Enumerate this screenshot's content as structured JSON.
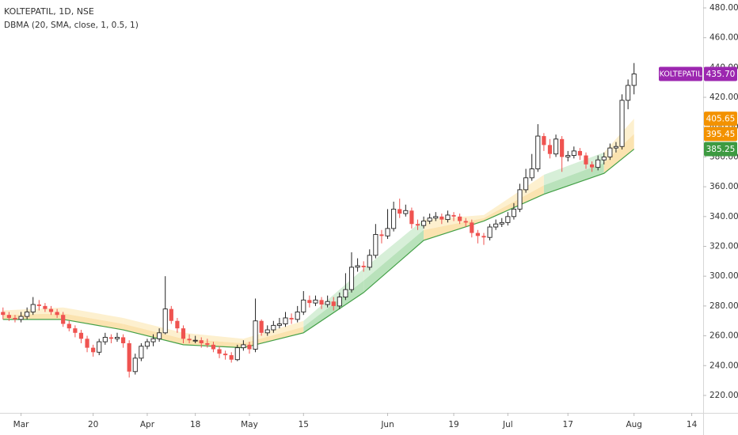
{
  "chart_data": {
    "type": "candlestick",
    "title": "KOLTEPATIL, 1D, NSE",
    "subtitle": "DBMA (20, SMA, close, 1, 0.5, 1)",
    "open": [
      276,
      274,
      272,
      271,
      273,
      276,
      281,
      280,
      278,
      276,
      274,
      268,
      265,
      262,
      258,
      252,
      249,
      256,
      259,
      258,
      259,
      255,
      236,
      245,
      253,
      256,
      258,
      262,
      278,
      270,
      265,
      258,
      257,
      257,
      255,
      254,
      251,
      248,
      247,
      244,
      252,
      254,
      251,
      270,
      262,
      264,
      267,
      268,
      272,
      271,
      276,
      284,
      282,
      284,
      281,
      283,
      280,
      286,
      291,
      306,
      307,
      306,
      314,
      328,
      327,
      332,
      345,
      342,
      344,
      335,
      334,
      337,
      339,
      340,
      338,
      341,
      340,
      337,
      336,
      329,
      327,
      326,
      333,
      335,
      336,
      340,
      345,
      358,
      366,
      372,
      394,
      388,
      382,
      392,
      380,
      381,
      384,
      381,
      375,
      373,
      378,
      380,
      386,
      387,
      418,
      428
    ],
    "high": [
      279,
      276,
      274,
      276,
      279,
      286,
      284,
      282,
      280,
      278,
      276,
      270,
      267,
      264,
      260,
      254,
      258,
      262,
      261,
      262,
      261,
      257,
      248,
      255,
      258,
      261,
      265,
      300,
      280,
      272,
      267,
      261,
      260,
      259,
      258,
      256,
      253,
      250,
      249,
      254,
      257,
      256,
      285,
      271,
      267,
      270,
      272,
      276,
      275,
      280,
      290,
      287,
      287,
      286,
      287,
      286,
      289,
      302,
      316,
      312,
      310,
      318,
      335,
      331,
      345,
      350,
      352,
      348,
      346,
      338,
      340,
      342,
      343,
      342,
      344,
      343,
      342,
      339,
      338,
      331,
      329,
      335,
      338,
      339,
      343,
      349,
      362,
      372,
      382,
      402,
      396,
      392,
      395,
      394,
      384,
      387,
      386,
      383,
      377,
      381,
      383,
      389,
      390,
      422,
      432,
      443
    ],
    "low": [
      271,
      270,
      269,
      269,
      271,
      274,
      277,
      276,
      274,
      272,
      266,
      263,
      259,
      255,
      249,
      246,
      247,
      254,
      255,
      256,
      252,
      232,
      234,
      243,
      251,
      253,
      256,
      261,
      268,
      262,
      255,
      255,
      255,
      252,
      252,
      249,
      245,
      244,
      242,
      243,
      250,
      248,
      249,
      260,
      260,
      262,
      265,
      266,
      268,
      269,
      274,
      279,
      280,
      278,
      279,
      277,
      278,
      284,
      289,
      303,
      303,
      304,
      312,
      322,
      325,
      330,
      339,
      340,
      332,
      331,
      332,
      335,
      337,
      335,
      336,
      337,
      335,
      333,
      326,
      322,
      321,
      324,
      331,
      333,
      334,
      338,
      343,
      356,
      364,
      370,
      384,
      379,
      380,
      370,
      377,
      379,
      378,
      372,
      370,
      371,
      375,
      378,
      383,
      385,
      412,
      422
    ],
    "close": [
      274,
      272,
      271,
      273,
      276,
      281,
      280,
      278,
      276,
      274,
      268,
      265,
      262,
      258,
      252,
      249,
      256,
      259,
      258,
      259,
      255,
      236,
      245,
      253,
      256,
      258,
      262,
      278,
      270,
      265,
      258,
      257,
      257,
      255,
      254,
      251,
      248,
      247,
      244,
      252,
      254,
      251,
      270,
      262,
      264,
      267,
      268,
      272,
      271,
      276,
      284,
      282,
      284,
      281,
      283,
      280,
      286,
      291,
      306,
      307,
      306,
      314,
      328,
      327,
      332,
      345,
      342,
      344,
      335,
      334,
      337,
      339,
      340,
      338,
      341,
      340,
      337,
      336,
      329,
      327,
      326,
      333,
      335,
      336,
      340,
      345,
      358,
      366,
      372,
      394,
      388,
      382,
      392,
      380,
      381,
      384,
      381,
      375,
      373,
      378,
      380,
      386,
      387,
      418,
      428,
      435.7
    ],
    "xlim": [
      -0.5,
      116.5
    ],
    "xticks": [
      {
        "value": 3,
        "label": "Mar"
      },
      {
        "value": 15,
        "label": "20"
      },
      {
        "value": 24,
        "label": "Apr"
      },
      {
        "value": 32,
        "label": "18"
      },
      {
        "value": 41,
        "label": "May"
      },
      {
        "value": 50,
        "label": "15"
      },
      {
        "value": 64,
        "label": "Jun"
      },
      {
        "value": 75,
        "label": "19"
      },
      {
        "value": 84,
        "label": "Jul"
      },
      {
        "value": 94,
        "label": "17"
      },
      {
        "value": 105,
        "label": "Aug"
      },
      {
        "value": 114.6,
        "label": "14"
      }
    ],
    "ylim": [
      208.3,
      485.3
    ],
    "yticks": [
      {
        "value": 220,
        "label": "220.00"
      },
      {
        "value": 240,
        "label": "240.00"
      },
      {
        "value": 260,
        "label": "260.00"
      },
      {
        "value": 280,
        "label": "280.00"
      },
      {
        "value": 300,
        "label": "300.00"
      },
      {
        "value": 320,
        "label": "320.00"
      },
      {
        "value": 340,
        "label": "340.00"
      },
      {
        "value": 360,
        "label": "360.00"
      },
      {
        "value": 380,
        "label": "380.00"
      },
      {
        "value": 400,
        "label": "400.00"
      },
      {
        "value": 420,
        "label": "420.00"
      },
      {
        "value": 440,
        "label": "440.00"
      },
      {
        "value": 460,
        "label": "460.00"
      },
      {
        "value": 480,
        "label": "480.00"
      }
    ],
    "band": {
      "x": [
        0,
        10,
        20,
        30,
        40,
        50,
        60,
        70,
        80,
        90,
        100,
        105
      ],
      "upper": [
        277,
        279,
        272,
        262,
        258,
        270,
        305,
        338,
        341,
        368,
        383,
        405.65
      ],
      "middle": [
        274,
        275,
        268,
        258,
        255,
        266,
        297,
        331,
        339,
        361,
        376,
        395.45
      ],
      "lower": [
        271,
        271,
        264,
        254,
        252,
        262,
        289,
        324,
        337,
        355,
        369,
        385.25
      ],
      "line_color": "#43a047",
      "up_colors": [
        "#d7efd8",
        "#b9e2bb"
      ],
      "weak_colors": [
        "#fdf0cf",
        "#fbe3b0"
      ]
    },
    "up_color": "#ffffff",
    "down_color": "#ef5350",
    "price_tags": [
      {
        "name": "KOLTEPATIL",
        "value": 435.7,
        "label": "435.70",
        "color": "#9c27b0"
      },
      {
        "value": 405.65,
        "label": "405.65",
        "color": "#f39200"
      },
      {
        "value": 395.45,
        "label": "395.45",
        "color": "#f39200"
      },
      {
        "value": 385.25,
        "label": "385.25",
        "color": "#3d9a41"
      }
    ]
  }
}
